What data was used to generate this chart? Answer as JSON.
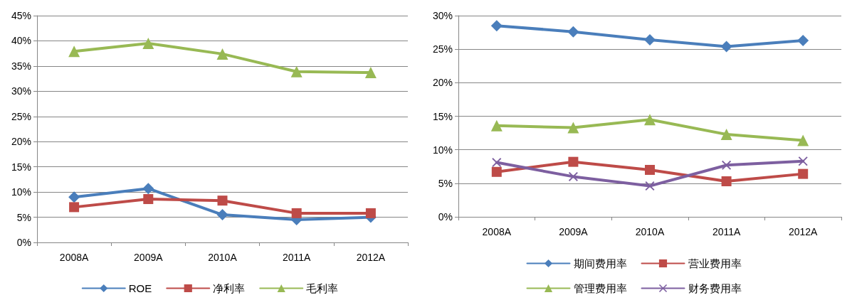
{
  "chart_data": [
    {
      "type": "line",
      "categories": [
        "2008A",
        "2009A",
        "2010A",
        "2011A",
        "2012A"
      ],
      "ylim": [
        0,
        45
      ],
      "yticks": [
        {
          "value": 0,
          "label": "0%"
        },
        {
          "value": 5,
          "label": "5%"
        },
        {
          "value": 10,
          "label": "10%"
        },
        {
          "value": 15,
          "label": "15%"
        },
        {
          "value": 20,
          "label": "20%"
        },
        {
          "value": 25,
          "label": "25%"
        },
        {
          "value": 30,
          "label": "30%"
        },
        {
          "value": 35,
          "label": "35%"
        },
        {
          "value": 40,
          "label": "40%"
        },
        {
          "value": 45,
          "label": "45%"
        }
      ],
      "grid": "y",
      "legend": "bottom",
      "series": [
        {
          "name": "ROE",
          "color": "#4a7ebb",
          "marker": "diamond",
          "values": [
            9.0,
            10.7,
            5.5,
            4.5,
            5.0
          ]
        },
        {
          "name": "净利率",
          "color": "#be4b48",
          "marker": "square",
          "values": [
            7.0,
            8.6,
            8.3,
            5.8,
            5.8
          ]
        },
        {
          "name": "毛利率",
          "color": "#98b954",
          "marker": "triangle",
          "values": [
            37.9,
            39.5,
            37.4,
            33.9,
            33.7
          ]
        }
      ]
    },
    {
      "type": "line",
      "categories": [
        "2008A",
        "2009A",
        "2010A",
        "2011A",
        "2012A"
      ],
      "ylim": [
        0,
        30
      ],
      "yticks": [
        {
          "value": 0,
          "label": "0%"
        },
        {
          "value": 5,
          "label": "5%"
        },
        {
          "value": 10,
          "label": "10%"
        },
        {
          "value": 15,
          "label": "15%"
        },
        {
          "value": 20,
          "label": "20%"
        },
        {
          "value": 25,
          "label": "25%"
        },
        {
          "value": 30,
          "label": "30%"
        }
      ],
      "grid": "y",
      "legend": "bottom",
      "series": [
        {
          "name": "期间费用率",
          "color": "#4a7ebb",
          "marker": "diamond",
          "values": [
            28.5,
            27.6,
            26.4,
            25.4,
            26.3
          ]
        },
        {
          "name": "营业费用率",
          "color": "#be4b48",
          "marker": "square",
          "values": [
            6.7,
            8.2,
            7.0,
            5.3,
            6.4
          ]
        },
        {
          "name": "管理费用率",
          "color": "#98b954",
          "marker": "triangle",
          "values": [
            13.6,
            13.3,
            14.5,
            12.3,
            11.4
          ]
        },
        {
          "name": "财务费用率",
          "color": "#7d5fa0",
          "marker": "cross",
          "values": [
            8.1,
            6.0,
            4.6,
            7.7,
            8.3
          ]
        }
      ]
    }
  ]
}
